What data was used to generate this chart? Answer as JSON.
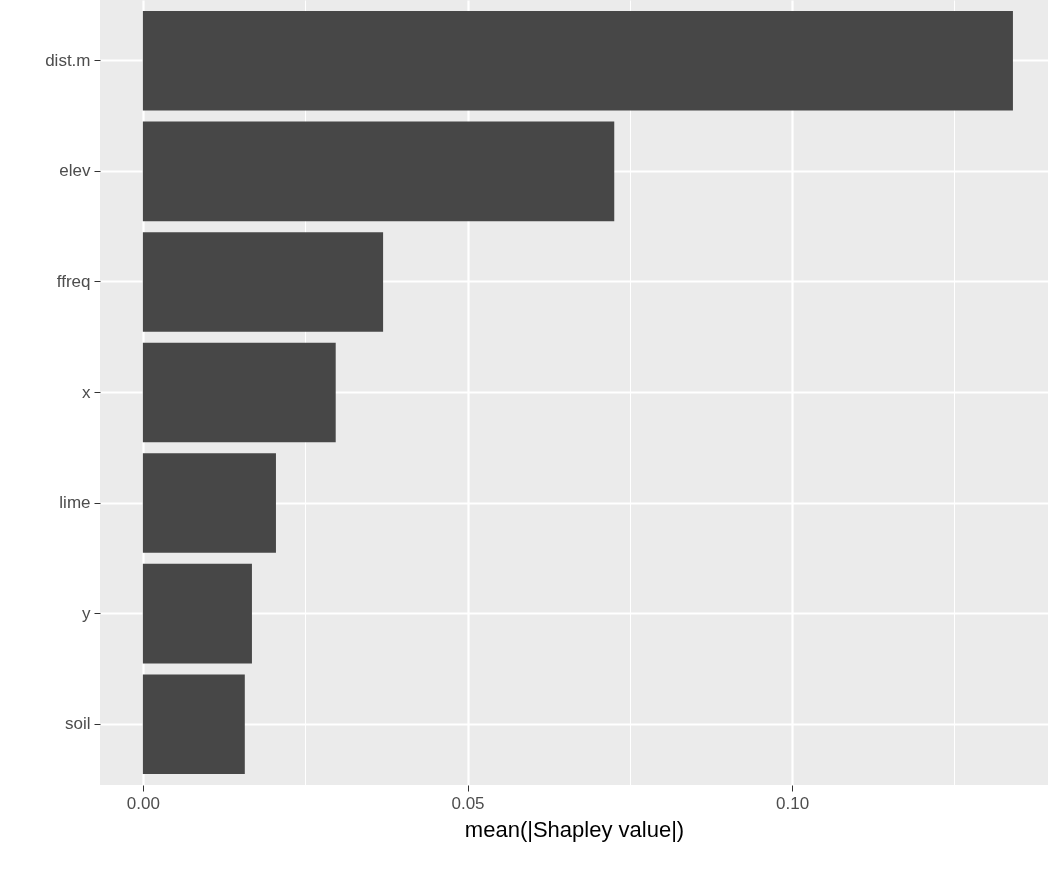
{
  "chart_data": {
    "type": "bar",
    "orientation": "horizontal",
    "xlabel": "mean(|Shapley value|)",
    "categories": [
      "dist.m",
      "elev",
      "ffreq",
      "x",
      "lime",
      "y",
      "soil"
    ],
    "values": [
      0.134,
      0.0726,
      0.037,
      0.0297,
      0.0205,
      0.0168,
      0.0157
    ],
    "color": "#474747",
    "xlim": [
      -0.0066,
      0.1394
    ],
    "xticks": [
      {
        "value": 0,
        "label": "0.00"
      },
      {
        "value": 0.025,
        "label": null
      },
      {
        "value": 0.05,
        "label": "0.05"
      },
      {
        "value": 0.075,
        "label": null
      },
      {
        "value": 0.1,
        "label": "0.10"
      },
      {
        "value": 0.125,
        "label": null
      }
    ],
    "grid": true
  }
}
